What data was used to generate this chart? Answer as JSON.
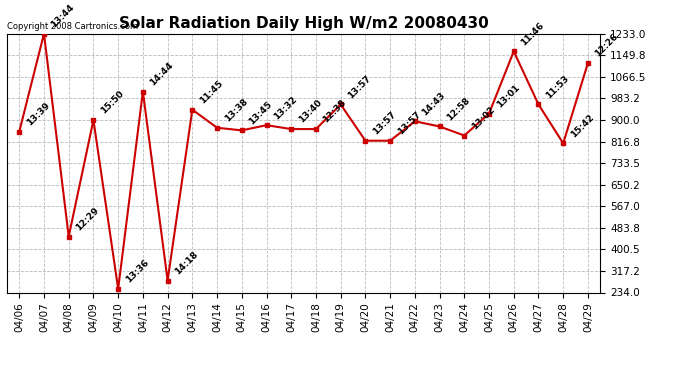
{
  "title": "Solar Radiation Daily High W/m2 20080430",
  "copyright": "Copyright 2008 Cartronics.com",
  "dates": [
    "04/06",
    "04/07",
    "04/08",
    "04/09",
    "04/10",
    "04/11",
    "04/12",
    "04/13",
    "04/14",
    "04/15",
    "04/16",
    "04/17",
    "04/18",
    "04/19",
    "04/20",
    "04/21",
    "04/22",
    "04/23",
    "04/24",
    "04/25",
    "04/26",
    "04/27",
    "04/28",
    "04/29"
  ],
  "values": [
    855,
    1233,
    450,
    900,
    248,
    1010,
    280,
    940,
    870,
    860,
    880,
    865,
    865,
    960,
    820,
    820,
    895,
    875,
    840,
    925,
    1165,
    960,
    810,
    1120
  ],
  "labels": [
    "13:39",
    "13:44",
    "12:29",
    "15:50",
    "13:36",
    "14:44",
    "14:18",
    "11:45",
    "13:38",
    "13:45",
    "13:32",
    "13:40",
    "12:38",
    "13:57",
    "13:57",
    "13:57",
    "14:43",
    "12:58",
    "13:02",
    "13:01",
    "11:46",
    "11:53",
    "15:42",
    "12:26"
  ],
  "ylim": [
    234.0,
    1233.0
  ],
  "yticks": [
    234.0,
    317.2,
    400.5,
    483.8,
    567.0,
    650.2,
    733.5,
    816.8,
    900.0,
    983.2,
    1066.5,
    1149.8,
    1233.0
  ],
  "ytick_labels": [
    "234.0",
    "317.2",
    "400.5",
    "483.8",
    "567.0",
    "650.2",
    "733.5",
    "816.8",
    "900.0",
    "983.2",
    "1066.5",
    "1149.8",
    "1233.0"
  ],
  "line_color": "#cc0000",
  "marker_color": "#cc0000",
  "bg_color": "#ffffff",
  "grid_color": "#bbbbbb",
  "title_fontsize": 11,
  "label_fontsize": 6.5,
  "tick_fontsize": 7.5
}
